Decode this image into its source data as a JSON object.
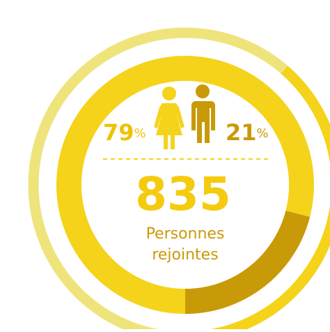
{
  "chart_data": {
    "type": "donut",
    "values": [
      79,
      21
    ],
    "colors": [
      "#f5d31a",
      "#c99a08"
    ],
    "percent_sign": "%",
    "total": 835,
    "total_label": [
      "Personnes",
      "rejointes"
    ]
  }
}
